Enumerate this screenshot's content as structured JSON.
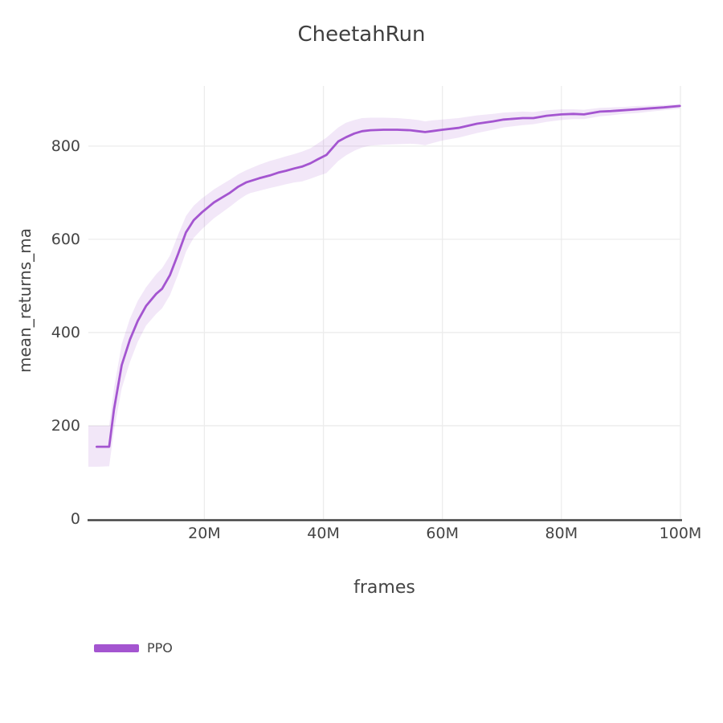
{
  "page": {
    "background": "#ffffff"
  },
  "chart_data": {
    "type": "line",
    "title": "CheetahRun",
    "xlabel": "frames",
    "ylabel": "mean_returns_ma",
    "xlim": [
      0.5,
      100
    ],
    "ylim": [
      0,
      929
    ],
    "x_unit": "M (millions of frames)",
    "grid": true,
    "legend_position": "bottom-left",
    "x_ticks": [
      {
        "value": 20,
        "label": "20M"
      },
      {
        "value": 40,
        "label": "40M"
      },
      {
        "value": 60,
        "label": "60M"
      },
      {
        "value": 80,
        "label": "80M"
      },
      {
        "value": 100,
        "label": "100M"
      }
    ],
    "y_ticks": [
      {
        "value": 0,
        "label": "0"
      },
      {
        "value": 200,
        "label": "200"
      },
      {
        "value": 400,
        "label": "400"
      },
      {
        "value": 600,
        "label": "600"
      },
      {
        "value": 800,
        "label": "800"
      }
    ],
    "colors": {
      "line": "#a455d0",
      "band": "rgba(164,85,208,0.14)",
      "grid": "#ececec",
      "axis": "#444444",
      "text": "#444444",
      "background": "#ffffff"
    },
    "series": [
      {
        "name": "PPO",
        "x": [
          1.9,
          4.0,
          4.8,
          6.1,
          7.5,
          8.8,
          10.2,
          11.9,
          12.9,
          14.2,
          15.6,
          16.9,
          17.6,
          18.2,
          19.6,
          21.6,
          23.0,
          24.3,
          25.7,
          27.0,
          27.7,
          29.2,
          31.0,
          32.4,
          33.7,
          35.1,
          36.4,
          37.8,
          39.1,
          40.5,
          42.5,
          43.8,
          45.2,
          46.5,
          47.9,
          50.1,
          52.4,
          54.6,
          55.9,
          57.1,
          58.2,
          60.0,
          62.7,
          65.8,
          68.5,
          70.3,
          73.5,
          75.3,
          77.5,
          80.0,
          82.0,
          83.8,
          86.5,
          88.3,
          90.5,
          92.8,
          95.0,
          97.2,
          99.9
        ],
        "mean": [
          155,
          155,
          235,
          330,
          385,
          425,
          457,
          483,
          494,
          523,
          569,
          615,
          629,
          641,
          658,
          679,
          690,
          700,
          713,
          722,
          725,
          731,
          737,
          743,
          747,
          752,
          756,
          763,
          772,
          781,
          810,
          819,
          827,
          832,
          834,
          835,
          835,
          834,
          832,
          830,
          832,
          835,
          839,
          848,
          853,
          857,
          860,
          860,
          865,
          868,
          869,
          868,
          874,
          875,
          877,
          879,
          881,
          883,
          886
        ],
        "band_x": [
          0.5,
          1.9,
          4.0,
          4.8,
          6.1,
          7.5,
          8.8,
          10.2,
          11.9,
          12.9,
          14.2,
          15.6,
          16.9,
          17.6,
          18.2,
          19.6,
          21.6,
          23.0,
          24.3,
          25.7,
          27.0,
          27.7,
          29.2,
          31.0,
          32.4,
          33.7,
          35.1,
          36.4,
          37.8,
          39.1,
          40.5,
          42.5,
          43.8,
          45.2,
          46.5,
          47.9,
          50.1,
          52.4,
          54.6,
          55.9,
          57.1,
          58.2,
          60.0,
          62.7,
          65.8,
          68.5,
          70.3,
          73.5,
          75.3,
          77.5,
          80.0,
          82.0,
          83.8,
          86.5,
          88.3,
          90.5,
          92.8,
          95.0,
          97.2,
          99.9
        ],
        "band_lo": [
          112,
          112,
          113,
          190,
          280,
          337,
          380,
          415,
          440,
          452,
          480,
          525,
          573,
          590,
          603,
          622,
          645,
          658,
          670,
          684,
          695,
          699,
          704,
          710,
          714,
          718,
          722,
          724,
          730,
          736,
          742,
          768,
          780,
          790,
          797,
          801,
          803,
          804,
          805,
          804,
          802,
          806,
          812,
          818,
          828,
          835,
          840,
          845,
          847,
          852,
          856,
          858,
          858,
          864,
          866,
          869,
          871,
          874,
          877,
          880
        ],
        "band_hi": [
          200,
          200,
          200,
          280,
          375,
          430,
          468,
          497,
          525,
          538,
          565,
          610,
          650,
          662,
          672,
          688,
          707,
          718,
          728,
          740,
          748,
          752,
          760,
          768,
          773,
          778,
          783,
          788,
          795,
          806,
          818,
          840,
          850,
          856,
          860,
          861,
          861,
          860,
          858,
          856,
          853,
          855,
          857,
          860,
          866,
          869,
          872,
          874,
          873,
          877,
          879,
          879,
          878,
          882,
          883,
          884,
          886,
          887,
          888,
          890
        ]
      }
    ]
  }
}
